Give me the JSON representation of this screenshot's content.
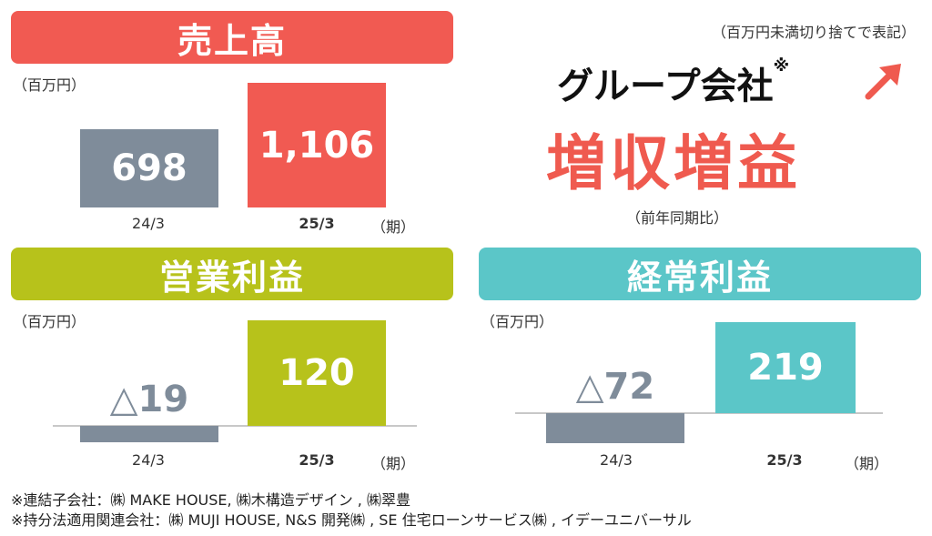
{
  "note_top": "（百万円未満切り捨てで表記）",
  "headline": {
    "line1": "グループ会社",
    "mark": "※",
    "line2": "増収増益",
    "sub": "（前年同期比）"
  },
  "colors": {
    "sales": "#f15a52",
    "operating": "#b7c21b",
    "ordinary": "#5bc6c8",
    "prior": "#7f8c9a"
  },
  "chart_data": [
    {
      "type": "bar",
      "title": "売上高",
      "ylabel": "（百万円）",
      "period_label": "（期）",
      "categories": [
        "24/3",
        "25/3"
      ],
      "values": [
        698,
        1106
      ],
      "value_labels": [
        "698",
        "1,106"
      ]
    },
    {
      "type": "bar",
      "title": "営業利益",
      "ylabel": "（百万円）",
      "period_label": "（期）",
      "categories": [
        "24/3",
        "25/3"
      ],
      "values": [
        -19,
        120
      ],
      "value_labels": [
        "△19",
        "120"
      ]
    },
    {
      "type": "bar",
      "title": "経常利益",
      "ylabel": "（百万円）",
      "period_label": "（期）",
      "categories": [
        "24/3",
        "25/3"
      ],
      "values": [
        -72,
        219
      ],
      "value_labels": [
        "△72",
        "219"
      ]
    }
  ],
  "footnotes": [
    "※連結子会社：㈱ MAKE HOUSE, ㈱木構造デザイン , ㈱翠豊",
    "※持分法適用関連会社：㈱ MUJI HOUSE, N&S 開発㈱ , SE 住宅ローンサービス㈱ , イデーユニバーサル"
  ]
}
